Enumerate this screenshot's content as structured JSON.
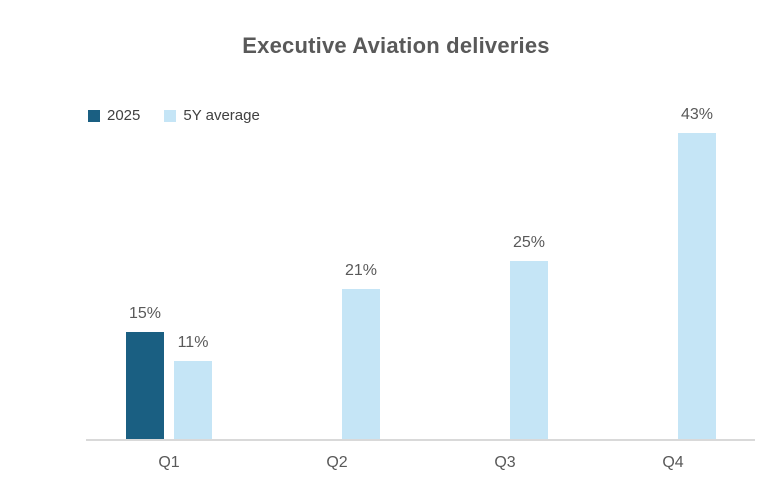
{
  "title": "Executive Aviation deliveries",
  "legend": [
    {
      "label": "2025",
      "color": "#1A5F82"
    },
    {
      "label": "5Y average",
      "color": "#C5E5F6"
    }
  ],
  "colors": {
    "series_2025": "#1A5F82",
    "series_5y_average": "#C5E5F6",
    "title_text": "#595959",
    "label_text": "#595959",
    "axis_line": "#D9D9D9",
    "background": "#FFFFFF"
  },
  "chart_data": {
    "type": "bar",
    "title": "Executive Aviation deliveries",
    "categories": [
      "Q1",
      "Q2",
      "Q3",
      "Q4"
    ],
    "series": [
      {
        "name": "2025",
        "color": "#1A5F82",
        "values": [
          15,
          null,
          null,
          null
        ]
      },
      {
        "name": "5Y average",
        "color": "#C5E5F6",
        "values": [
          11,
          21,
          25,
          43
        ]
      }
    ],
    "value_suffix": "%",
    "data_labels": {
      "2025": [
        "15%",
        null,
        null,
        null
      ],
      "5Y average": [
        "11%",
        "21%",
        "25%",
        "43%"
      ]
    },
    "xlabel": "",
    "ylabel": "",
    "ylim": [
      0,
      45
    ],
    "grid": false,
    "y_axis_visible": false,
    "legend_position": "top-left"
  }
}
